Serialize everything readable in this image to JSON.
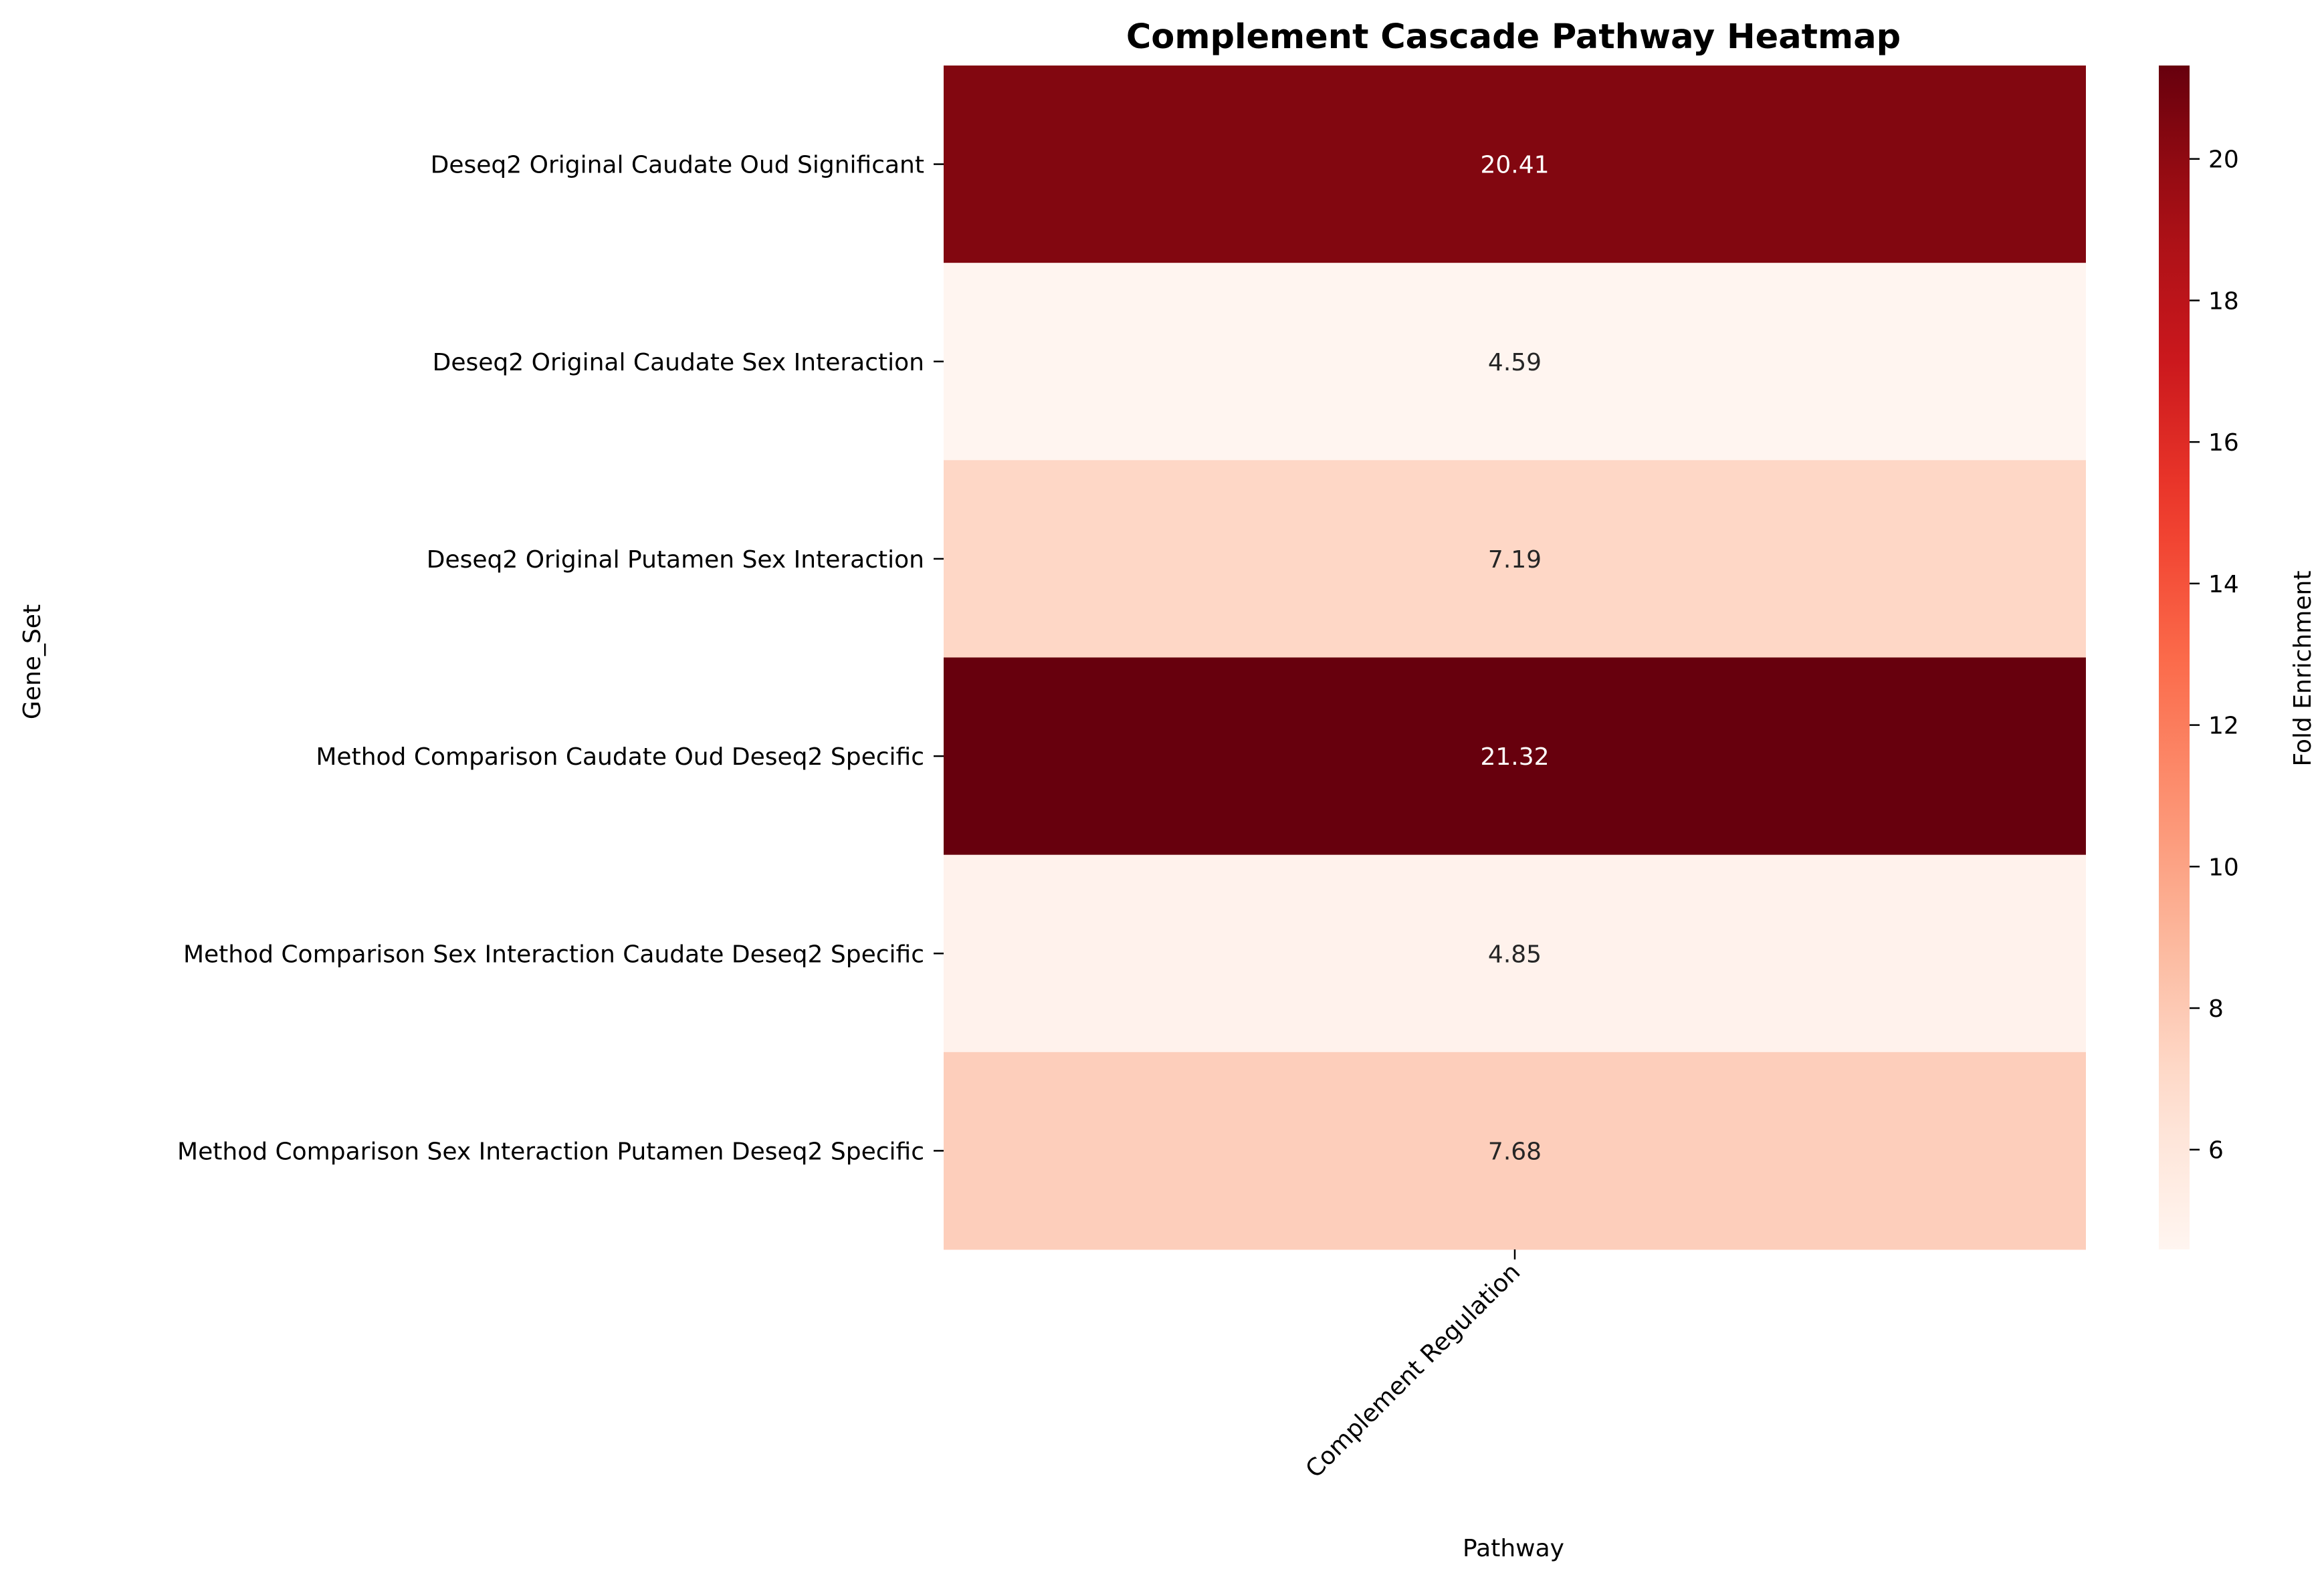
{
  "chart_data": {
    "type": "heatmap",
    "title": "Complement Cascade Pathway Heatmap",
    "xlabel": "Pathway",
    "ylabel": "Gene_Set",
    "colorbar_label": "Fold Enrichment",
    "colormap": "Reds",
    "x_categories": [
      "Complement Regulation"
    ],
    "y_categories": [
      "Deseq2 Original Caudate Oud Significant",
      "Deseq2 Original Caudate Sex Interaction",
      "Deseq2 Original Putamen Sex Interaction",
      "Method Comparison Caudate Oud Deseq2 Specific",
      "Method Comparison Sex Interaction Caudate Deseq2 Specific",
      "Method Comparison Sex Interaction Putamen Deseq2 Specific"
    ],
    "values": [
      [
        20.41
      ],
      [
        4.59
      ],
      [
        7.19
      ],
      [
        21.32
      ],
      [
        4.85
      ],
      [
        7.68
      ]
    ],
    "value_labels": [
      "20.41",
      "4.59",
      "7.19",
      "21.32",
      "4.85",
      "7.68"
    ],
    "vmin": 4.59,
    "vmax": 21.32,
    "colorbar_ticks": [
      6,
      8,
      10,
      12,
      14,
      16,
      18,
      20
    ],
    "colorbar_tick_labels": [
      "6",
      "8",
      "10",
      "12",
      "14",
      "16",
      "18",
      "20"
    ]
  }
}
